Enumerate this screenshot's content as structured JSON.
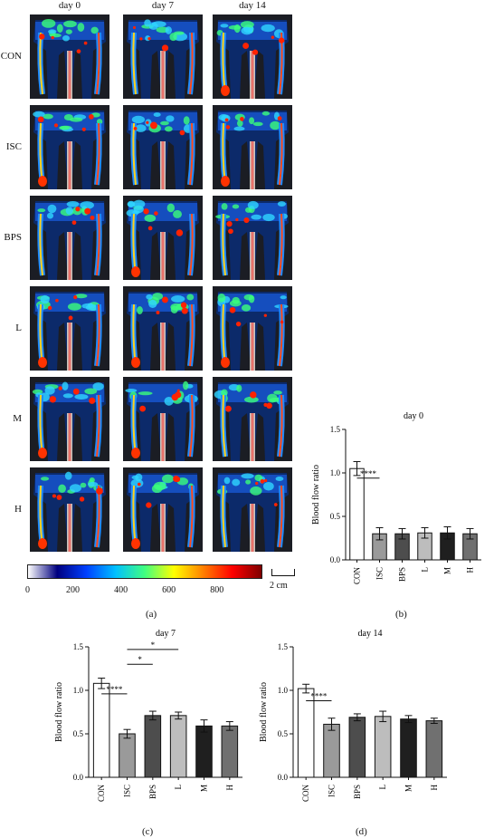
{
  "perfusion_grid": {
    "columns": [
      "day 0",
      "day 7",
      "day 14"
    ],
    "rows": [
      "CON",
      "ISC",
      "BPS",
      "L",
      "M",
      "H"
    ]
  },
  "colorbar": {
    "ticks": [
      "0",
      "200",
      "400",
      "600",
      "800"
    ],
    "colors": [
      "#ffffff",
      "#00007f",
      "#0040ff",
      "#00c0ff",
      "#40ff80",
      "#ffff00",
      "#ff8000",
      "#ff0000",
      "#7f0000"
    ]
  },
  "scale_bar": {
    "label": "2 cm"
  },
  "panel_labels": {
    "a": "(a)",
    "b": "(b)",
    "c": "(c)",
    "d": "(d)"
  },
  "chart_data": [
    {
      "type": "bar",
      "title": "day 0",
      "ylabel": "Blood flow ratio",
      "categories": [
        "CON",
        "ISC",
        "BPS",
        "L",
        "M",
        "H"
      ],
      "values": [
        1.05,
        0.3,
        0.3,
        0.31,
        0.31,
        0.3
      ],
      "errors": [
        0.08,
        0.07,
        0.06,
        0.06,
        0.07,
        0.06
      ],
      "colors": [
        "#ffffff",
        "#9a9a9a",
        "#4d4d4d",
        "#bdbdbd",
        "#1f1f1f",
        "#707070"
      ],
      "ylim": [
        0,
        1.5
      ],
      "yticks": [
        "0.0",
        "0.5",
        "1.0",
        "1.5"
      ],
      "significance": [
        {
          "from": 0,
          "to": 1,
          "y": 0.94,
          "label": "****"
        }
      ]
    },
    {
      "type": "bar",
      "title": "day 7",
      "ylabel": "Blood flow ratio",
      "categories": [
        "CON",
        "ISC",
        "BPS",
        "L",
        "M",
        "H"
      ],
      "values": [
        1.08,
        0.5,
        0.71,
        0.71,
        0.59,
        0.59
      ],
      "errors": [
        0.06,
        0.05,
        0.05,
        0.04,
        0.07,
        0.05
      ],
      "colors": [
        "#ffffff",
        "#9a9a9a",
        "#4d4d4d",
        "#bdbdbd",
        "#1f1f1f",
        "#707070"
      ],
      "ylim": [
        0,
        1.5
      ],
      "yticks": [
        "0.0",
        "0.5",
        "1.0",
        "1.5"
      ],
      "significance": [
        {
          "from": 0,
          "to": 1,
          "y": 0.96,
          "label": "****"
        },
        {
          "from": 1,
          "to": 2,
          "y": 1.3,
          "label": "*"
        },
        {
          "from": 1,
          "to": 3,
          "y": 1.47,
          "label": "*"
        }
      ]
    },
    {
      "type": "bar",
      "title": "day 14",
      "ylabel": "Blood flow ratio",
      "categories": [
        "CON",
        "ISC",
        "BPS",
        "L",
        "M",
        "H"
      ],
      "values": [
        1.02,
        0.61,
        0.69,
        0.7,
        0.67,
        0.65
      ],
      "errors": [
        0.05,
        0.07,
        0.04,
        0.06,
        0.04,
        0.03
      ],
      "colors": [
        "#ffffff",
        "#9a9a9a",
        "#4d4d4d",
        "#bdbdbd",
        "#1f1f1f",
        "#707070"
      ],
      "ylim": [
        0,
        1.5
      ],
      "yticks": [
        "0.0",
        "0.5",
        "1.0",
        "1.5"
      ],
      "significance": [
        {
          "from": 0,
          "to": 1,
          "y": 0.88,
          "label": "****"
        }
      ]
    }
  ]
}
